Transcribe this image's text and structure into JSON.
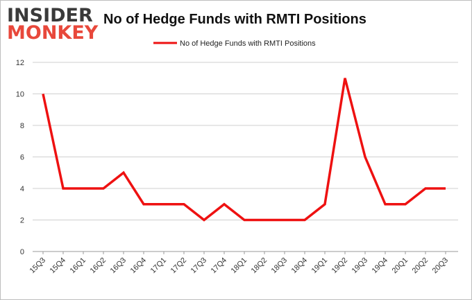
{
  "branding": {
    "logo_line1": "INSIDER",
    "logo_line2": "MONKEY"
  },
  "colors": {
    "line": "#ee1111",
    "grid": "#cfcfcf",
    "logo_dark": "#3a3a3a",
    "logo_red": "#e8483b"
  },
  "chart_data": {
    "type": "line",
    "title": "No of Hedge Funds with RMTI Positions",
    "xlabel": "",
    "ylabel": "",
    "ylim": [
      0,
      12
    ],
    "yticks": [
      0,
      2,
      4,
      6,
      8,
      10,
      12
    ],
    "grid": true,
    "legend_position": "top-center",
    "categories": [
      "15Q3",
      "15Q4",
      "16Q1",
      "16Q2",
      "16Q3",
      "16Q4",
      "17Q1",
      "17Q2",
      "17Q3",
      "17Q4",
      "18Q1",
      "18Q2",
      "18Q3",
      "18Q4",
      "19Q1",
      "19Q2",
      "19Q3",
      "19Q4",
      "20Q1",
      "20Q2",
      "20Q3"
    ],
    "series": [
      {
        "name": "No of Hedge Funds with RMTI Positions",
        "values": [
          10,
          4,
          4,
          4,
          5,
          3,
          3,
          3,
          2,
          3,
          2,
          2,
          2,
          2,
          3,
          11,
          6,
          3,
          3,
          4,
          4
        ]
      }
    ]
  }
}
